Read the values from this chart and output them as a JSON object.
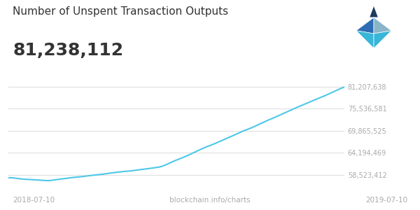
{
  "title": "Number of Unspent Transaction Outputs",
  "subtitle": "81,238,112",
  "xlabel_left": "2018-07-10",
  "xlabel_center": "blockchain.info/charts",
  "xlabel_right": "2019-07-10",
  "yticks": [
    58523412,
    64194469,
    69865525,
    75536581,
    81207638
  ],
  "ytick_labels": [
    "58,523,412",
    "64,194,469",
    "69,865,525",
    "75,536,581",
    "81,207,638"
  ],
  "line_color": "#4dc8e8",
  "background_color": "#ffffff",
  "grid_color": "#e0e0e0",
  "text_color": "#333333",
  "label_color": "#aaaaaa",
  "y_min": 56000000,
  "y_max": 83000000,
  "logo_colors": [
    "#1a3a6b",
    "#2e6db4",
    "#4dc8e8",
    "#7ab3c8"
  ]
}
